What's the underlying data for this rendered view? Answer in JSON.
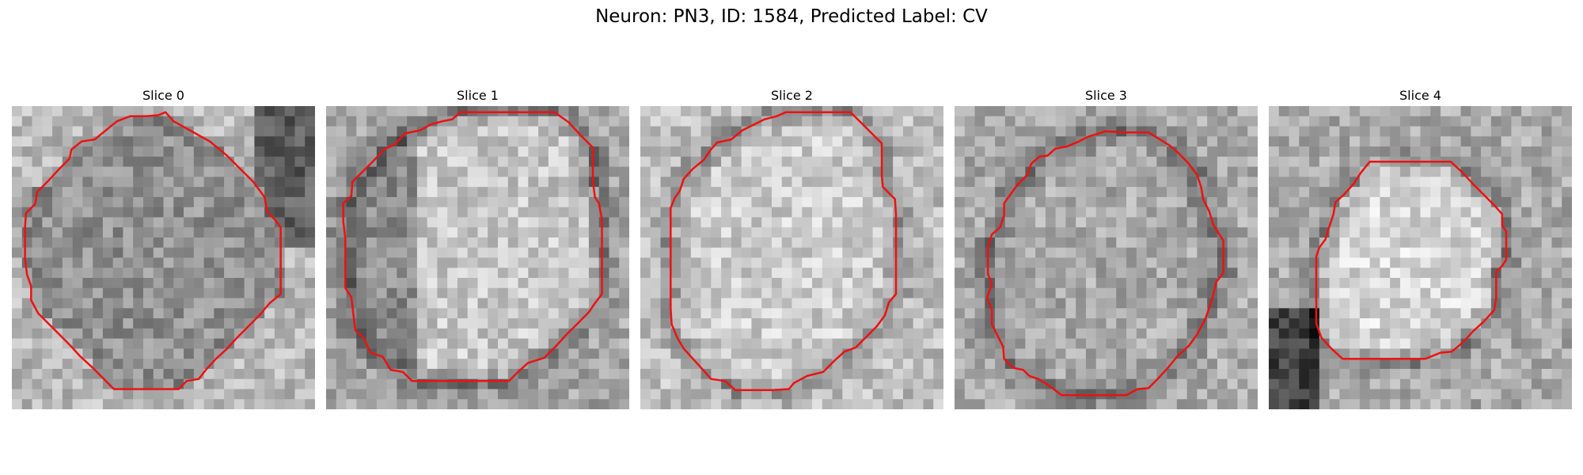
{
  "figure": {
    "title": "Neuron: PN3, ID: 1584, Predicted Label: CV"
  },
  "colors": {
    "contour": "#ee1111",
    "background": "#ffffff"
  },
  "slices": [
    {
      "title": "Slice 0",
      "contour": [
        [
          15.2,
          0.6
        ],
        [
          16.0,
          1.5
        ],
        [
          17.8,
          2.5
        ],
        [
          19.6,
          3.5
        ],
        [
          21.3,
          4.9
        ],
        [
          22.6,
          6.2
        ],
        [
          23.9,
          7.5
        ],
        [
          25.0,
          9.0
        ],
        [
          25.3,
          10.5
        ],
        [
          26.1,
          11.3
        ],
        [
          26.6,
          12.0
        ],
        [
          26.6,
          13.3
        ],
        [
          26.6,
          14.6
        ],
        [
          26.6,
          16.0
        ],
        [
          26.6,
          17.3
        ],
        [
          26.6,
          18.6
        ],
        [
          25.5,
          19.5
        ],
        [
          24.5,
          20.7
        ],
        [
          23.4,
          21.8
        ],
        [
          22.3,
          22.9
        ],
        [
          21.3,
          24.0
        ],
        [
          20.2,
          25.0
        ],
        [
          19.2,
          26.1
        ],
        [
          18.5,
          27.0
        ],
        [
          17.3,
          27.2
        ],
        [
          16.5,
          28.0
        ],
        [
          14.9,
          28.0
        ],
        [
          13.3,
          28.0
        ],
        [
          11.7,
          28.0
        ],
        [
          10.1,
          28.0
        ],
        [
          9.0,
          26.9
        ],
        [
          7.9,
          25.8
        ],
        [
          6.8,
          24.8
        ],
        [
          5.8,
          23.7
        ],
        [
          4.7,
          22.6
        ],
        [
          3.7,
          21.6
        ],
        [
          2.6,
          20.5
        ],
        [
          1.9,
          19.2
        ],
        [
          1.9,
          17.8
        ],
        [
          1.5,
          16.7
        ],
        [
          1.3,
          15.1
        ],
        [
          1.3,
          13.6
        ],
        [
          1.3,
          12.0
        ],
        [
          1.4,
          10.6
        ],
        [
          2.3,
          9.7
        ],
        [
          2.5,
          8.5
        ],
        [
          3.5,
          7.5
        ],
        [
          4.7,
          6.2
        ],
        [
          5.7,
          5.2
        ],
        [
          5.9,
          4.3
        ],
        [
          6.9,
          3.5
        ],
        [
          8.2,
          3.3
        ],
        [
          9.3,
          2.4
        ],
        [
          10.4,
          1.5
        ],
        [
          11.7,
          1.0
        ],
        [
          13.3,
          1.0
        ],
        [
          14.5,
          0.9
        ]
      ]
    },
    {
      "title": "Slice 1",
      "contour": [
        [
          13.3,
          0.6
        ],
        [
          16.0,
          0.6
        ],
        [
          19.4,
          0.6
        ],
        [
          22.6,
          0.6
        ],
        [
          24.0,
          1.6
        ],
        [
          25.2,
          2.9
        ],
        [
          26.4,
          4.1
        ],
        [
          26.4,
          5.7
        ],
        [
          26.4,
          7.4
        ],
        [
          26.6,
          9.0
        ],
        [
          27.0,
          9.6
        ],
        [
          27.3,
          11.2
        ],
        [
          27.3,
          13.0
        ],
        [
          27.3,
          14.9
        ],
        [
          27.3,
          16.8
        ],
        [
          27.3,
          18.6
        ],
        [
          26.6,
          19.5
        ],
        [
          26.0,
          20.4
        ],
        [
          24.9,
          21.5
        ],
        [
          23.8,
          22.6
        ],
        [
          22.7,
          23.8
        ],
        [
          21.6,
          24.9
        ],
        [
          20.0,
          25.4
        ],
        [
          19.1,
          26.2
        ],
        [
          18.1,
          27.2
        ],
        [
          16.5,
          27.2
        ],
        [
          14.9,
          27.2
        ],
        [
          13.3,
          27.2
        ],
        [
          11.7,
          27.2
        ],
        [
          10.1,
          27.2
        ],
        [
          8.5,
          27.2
        ],
        [
          7.6,
          26.3
        ],
        [
          6.4,
          26.1
        ],
        [
          5.6,
          24.8
        ],
        [
          4.4,
          24.4
        ],
        [
          3.7,
          22.9
        ],
        [
          2.9,
          22.2
        ],
        [
          2.7,
          20.6
        ],
        [
          2.5,
          18.9
        ],
        [
          1.9,
          18.0
        ],
        [
          1.9,
          16.3
        ],
        [
          1.9,
          14.7
        ],
        [
          1.9,
          13.1
        ],
        [
          1.7,
          11.4
        ],
        [
          1.7,
          9.6
        ],
        [
          2.5,
          8.9
        ],
        [
          2.6,
          7.5
        ],
        [
          3.7,
          6.4
        ],
        [
          4.8,
          5.3
        ],
        [
          5.7,
          4.3
        ],
        [
          6.8,
          3.8
        ],
        [
          7.8,
          2.7
        ],
        [
          9.3,
          2.4
        ],
        [
          10.4,
          1.8
        ],
        [
          11.5,
          1.5
        ],
        [
          12.5,
          1.3
        ]
      ]
    },
    {
      "title": "Slice 2",
      "contour": [
        [
          14.4,
          0.6
        ],
        [
          16.5,
          0.6
        ],
        [
          18.6,
          0.6
        ],
        [
          20.8,
          0.6
        ],
        [
          21.8,
          1.6
        ],
        [
          22.9,
          2.7
        ],
        [
          23.9,
          3.7
        ],
        [
          23.9,
          5.3
        ],
        [
          23.9,
          6.9
        ],
        [
          24.0,
          8.0
        ],
        [
          25.2,
          9.2
        ],
        [
          25.3,
          10.7
        ],
        [
          25.3,
          12.3
        ],
        [
          25.3,
          13.9
        ],
        [
          25.3,
          15.5
        ],
        [
          25.3,
          17.1
        ],
        [
          25.3,
          18.6
        ],
        [
          24.6,
          19.4
        ],
        [
          24.2,
          20.7
        ],
        [
          23.4,
          21.8
        ],
        [
          22.3,
          22.9
        ],
        [
          21.3,
          23.9
        ],
        [
          20.2,
          24.3
        ],
        [
          19.2,
          25.2
        ],
        [
          18.1,
          26.3
        ],
        [
          16.5,
          26.7
        ],
        [
          15.2,
          27.4
        ],
        [
          14.7,
          28.0
        ],
        [
          13.0,
          28.1
        ],
        [
          11.2,
          28.1
        ],
        [
          9.4,
          28.1
        ],
        [
          8.4,
          27.2
        ],
        [
          7.0,
          27.0
        ],
        [
          6.2,
          26.1
        ],
        [
          5.2,
          25.0
        ],
        [
          4.3,
          24.0
        ],
        [
          3.7,
          23.0
        ],
        [
          3.1,
          21.6
        ],
        [
          3.0,
          20.0
        ],
        [
          3.0,
          18.3
        ],
        [
          3.0,
          16.6
        ],
        [
          3.0,
          14.9
        ],
        [
          3.0,
          13.3
        ],
        [
          3.0,
          11.6
        ],
        [
          3.0,
          10.1
        ],
        [
          3.4,
          9.1
        ],
        [
          3.9,
          8.4
        ],
        [
          4.3,
          7.2
        ],
        [
          5.2,
          6.2
        ],
        [
          6.3,
          5.3
        ],
        [
          6.9,
          4.4
        ],
        [
          7.6,
          3.6
        ],
        [
          9.0,
          3.3
        ],
        [
          10.1,
          2.4
        ],
        [
          11.1,
          1.9
        ],
        [
          12.3,
          1.3
        ],
        [
          13.5,
          1.0
        ]
      ]
    },
    {
      "title": "Slice 3",
      "contour": [
        [
          14.9,
          2.5
        ],
        [
          17.0,
          2.6
        ],
        [
          19.2,
          2.6
        ],
        [
          21.3,
          3.9
        ],
        [
          22.0,
          4.5
        ],
        [
          23.1,
          5.6
        ],
        [
          24.0,
          6.8
        ],
        [
          24.4,
          8.0
        ],
        [
          24.6,
          9.2
        ],
        [
          25.2,
          10.4
        ],
        [
          25.6,
          11.7
        ],
        [
          26.2,
          12.7
        ],
        [
          26.6,
          13.3
        ],
        [
          26.6,
          14.9
        ],
        [
          26.6,
          16.5
        ],
        [
          25.9,
          17.4
        ],
        [
          25.6,
          18.7
        ],
        [
          25.2,
          20.0
        ],
        [
          24.8,
          21.1
        ],
        [
          24.0,
          22.6
        ],
        [
          23.2,
          23.7
        ],
        [
          22.0,
          24.8
        ],
        [
          21.2,
          25.8
        ],
        [
          20.2,
          26.9
        ],
        [
          19.2,
          27.9
        ],
        [
          18.1,
          28.0
        ],
        [
          17.0,
          28.6
        ],
        [
          15.6,
          28.6
        ],
        [
          14.0,
          28.6
        ],
        [
          12.3,
          28.6
        ],
        [
          10.6,
          28.6
        ],
        [
          9.4,
          27.7
        ],
        [
          8.3,
          27.0
        ],
        [
          7.4,
          26.7
        ],
        [
          6.8,
          26.1
        ],
        [
          5.8,
          25.9
        ],
        [
          4.9,
          25.0
        ],
        [
          4.8,
          23.8
        ],
        [
          4.2,
          22.6
        ],
        [
          3.7,
          21.6
        ],
        [
          3.7,
          20.1
        ],
        [
          3.2,
          19.0
        ],
        [
          3.7,
          17.6
        ],
        [
          3.3,
          16.6
        ],
        [
          3.3,
          15.3
        ],
        [
          3.3,
          13.9
        ],
        [
          3.7,
          12.7
        ],
        [
          4.5,
          12.0
        ],
        [
          4.9,
          10.8
        ],
        [
          4.9,
          9.6
        ],
        [
          5.5,
          8.8
        ],
        [
          6.2,
          7.8
        ],
        [
          7.2,
          6.8
        ],
        [
          7.6,
          5.7
        ],
        [
          8.4,
          5.0
        ],
        [
          9.2,
          4.9
        ],
        [
          10.0,
          4.2
        ],
        [
          11.1,
          4.0
        ],
        [
          12.3,
          3.5
        ],
        [
          13.3,
          3.0
        ],
        [
          14.3,
          2.7
        ]
      ]
    },
    {
      "title": "Slice 4",
      "contour": [
        [
          10.0,
          5.5
        ],
        [
          12.3,
          5.5
        ],
        [
          14.6,
          5.5
        ],
        [
          16.9,
          5.5
        ],
        [
          18.0,
          5.5
        ],
        [
          19.2,
          6.6
        ],
        [
          20.2,
          7.7
        ],
        [
          21.3,
          8.8
        ],
        [
          22.3,
          9.8
        ],
        [
          23.1,
          10.7
        ],
        [
          23.1,
          11.8
        ],
        [
          23.5,
          12.4
        ],
        [
          23.5,
          13.8
        ],
        [
          23.5,
          15.2
        ],
        [
          23.1,
          15.8
        ],
        [
          22.5,
          16.4
        ],
        [
          22.5,
          17.7
        ],
        [
          22.5,
          19.0
        ],
        [
          22.3,
          20.2
        ],
        [
          21.3,
          21.3
        ],
        [
          20.2,
          22.3
        ],
        [
          19.2,
          23.4
        ],
        [
          18.1,
          24.3
        ],
        [
          17.0,
          24.4
        ],
        [
          15.5,
          25.0
        ],
        [
          13.8,
          25.0
        ],
        [
          12.1,
          25.0
        ],
        [
          10.4,
          25.0
        ],
        [
          8.7,
          25.0
        ],
        [
          7.3,
          25.0
        ],
        [
          6.2,
          24.0
        ],
        [
          5.2,
          22.9
        ],
        [
          4.7,
          21.5
        ],
        [
          4.7,
          19.8
        ],
        [
          4.7,
          18.1
        ],
        [
          4.7,
          16.5
        ],
        [
          4.7,
          14.9
        ],
        [
          5.0,
          14.0
        ],
        [
          5.6,
          13.2
        ],
        [
          6.0,
          11.9
        ],
        [
          6.4,
          10.7
        ],
        [
          6.6,
          9.5
        ],
        [
          7.4,
          8.8
        ],
        [
          8.4,
          7.7
        ],
        [
          9.1,
          6.6
        ]
      ]
    }
  ]
}
